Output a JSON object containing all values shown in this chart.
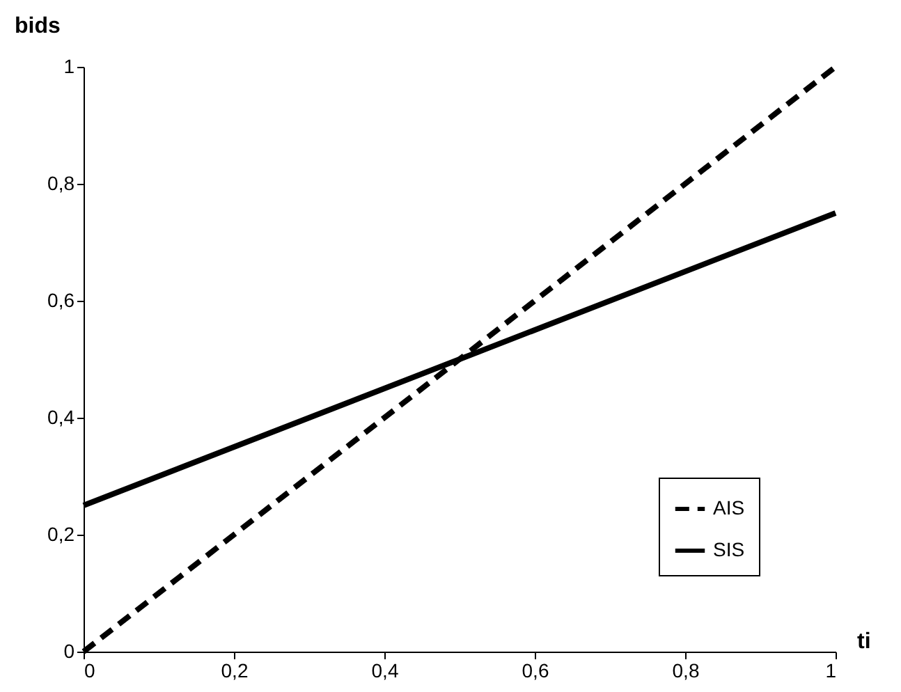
{
  "chart_data": {
    "type": "line",
    "xlabel": "ti",
    "ylabel": "bids",
    "x": [
      0,
      1
    ],
    "series": [
      {
        "name": "AIS",
        "color": "#000000",
        "line_style": "dashed",
        "values": [
          0,
          1
        ]
      },
      {
        "name": "SIS",
        "color": "#000000",
        "line_style": "solid",
        "values": [
          0.25,
          0.75
        ]
      }
    ],
    "xlim": [
      0,
      1
    ],
    "ylim": [
      0,
      1
    ],
    "xticks": [
      0,
      {
        "value": 0.2,
        "label": "0,2"
      },
      {
        "value": 0.4,
        "label": "0,4"
      },
      {
        "value": 0.6,
        "label": "0,6"
      },
      {
        "value": 0.8,
        "label": "0,8"
      },
      1
    ],
    "yticks": [
      0,
      {
        "value": 0.2,
        "label": "0,2"
      },
      {
        "value": 0.4,
        "label": "0,4"
      },
      {
        "value": 0.6,
        "label": "0,6"
      },
      {
        "value": 0.8,
        "label": "0,8"
      },
      1
    ],
    "grid": false,
    "legend": "bottom right",
    "marker": "none"
  }
}
